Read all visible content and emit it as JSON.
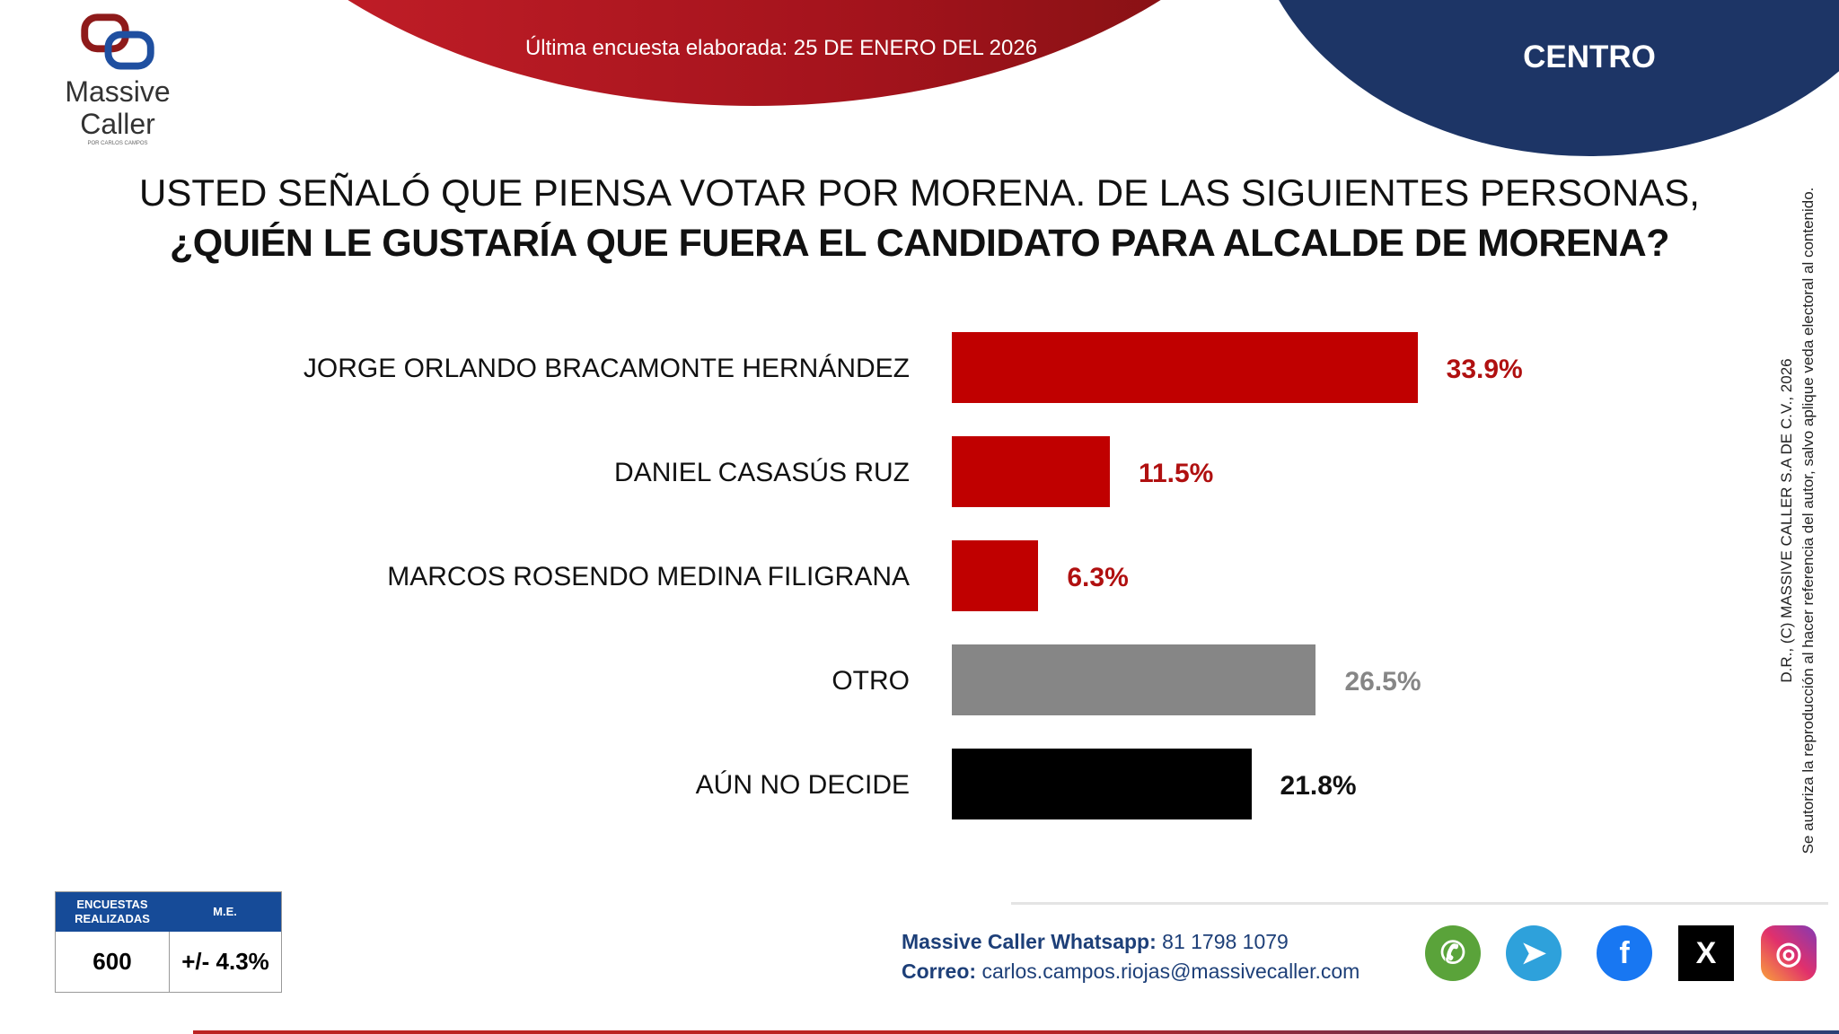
{
  "header": {
    "survey_date_text": "Última encuesta elaborada: 25 DE ENERO DEL 2026",
    "region": "CENTRO"
  },
  "logo": {
    "line1": "Massive",
    "line2": "Caller",
    "tagline": "POR CARLOS CAMPOS"
  },
  "question": {
    "line1": "USTED SEÑALÓ QUE PIENSA VOTAR POR MORENA. DE LAS SIGUIENTES PERSONAS,",
    "line2": "¿QUIÉN LE GUSTARÍA QUE FUERA EL CANDIDATO PARA ALCALDE DE MORENA?"
  },
  "chart_data": {
    "type": "bar",
    "orientation": "horizontal",
    "categories": [
      "JORGE ORLANDO BRACAMONTE HERNÁNDEZ",
      "DANIEL CASASÚS RUZ",
      "MARCOS ROSENDO MEDINA FILIGRANA",
      "OTRO",
      "AÚN NO DECIDE"
    ],
    "values": [
      33.9,
      11.5,
      6.3,
      26.5,
      21.8
    ],
    "value_labels": [
      "33.9%",
      "11.5%",
      "6.3%",
      "26.5%",
      "21.8%"
    ],
    "colors": [
      "#c00000",
      "#c00000",
      "#c00000",
      "#868686",
      "#000000"
    ],
    "label_colors": [
      "#b01010",
      "#b01010",
      "#b01010",
      "#868686",
      "#111111"
    ],
    "unit": "%"
  },
  "stats": {
    "h1": "ENCUESTAS REALIZADAS",
    "h2": "M.E.",
    "v1": "600",
    "v2": "+/- 4.3%"
  },
  "contact": {
    "wa_label": "Massive Caller Whatsapp:",
    "wa_value": "81 1798 1079",
    "mail_label": "Correo:",
    "mail_value": "carlos.campos.riojas@massivecaller.com"
  },
  "social": [
    "whatsapp",
    "telegram",
    "facebook",
    "x",
    "instagram"
  ],
  "copyright": {
    "line1": "D.R., (C) MASSIVE CALLER S.A DE C.V., 2026",
    "line2": "Se autoriza la reproducción al hacer referencia del autor, salvo aplique veda electoral al contenido."
  }
}
